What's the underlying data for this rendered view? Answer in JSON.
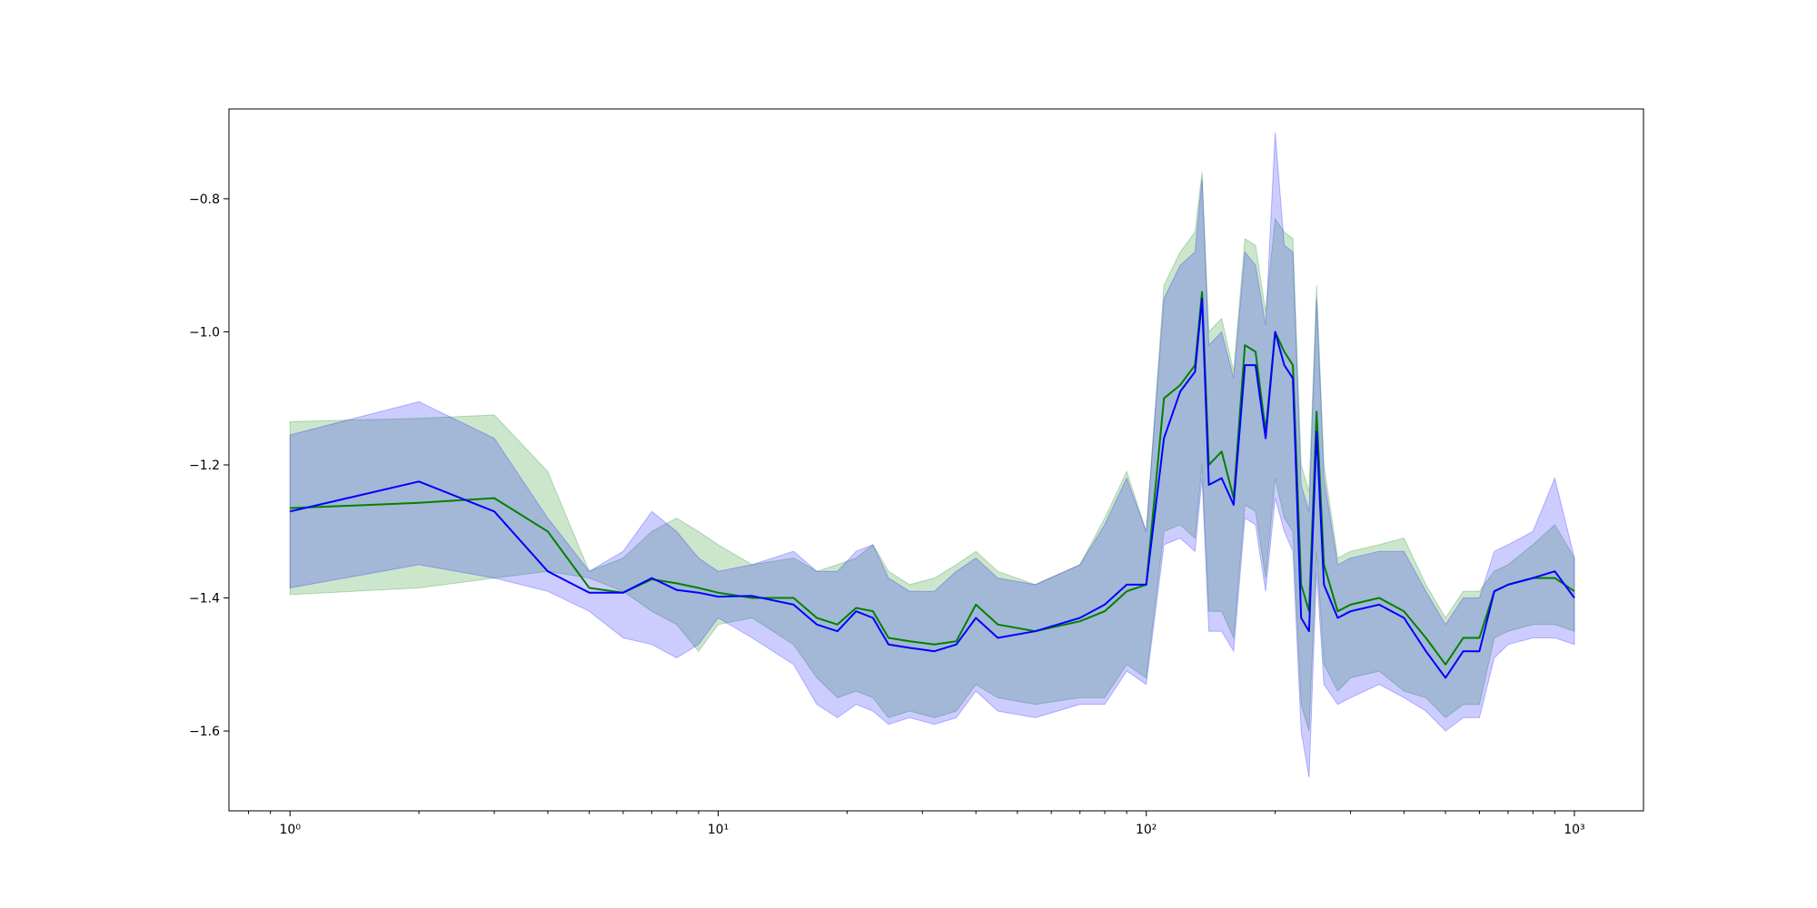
{
  "chart_data": {
    "type": "line",
    "title": "",
    "xlabel": "",
    "ylabel": "",
    "x_scale": "log",
    "xlim": [
      0.72,
      1450
    ],
    "ylim": [
      -1.72,
      -0.665
    ],
    "grid": false,
    "x_ticks": [
      {
        "value": 1,
        "label": "10⁰"
      },
      {
        "value": 10,
        "label": "10¹"
      },
      {
        "value": 100,
        "label": "10²"
      },
      {
        "value": 1000,
        "label": "10³"
      }
    ],
    "y_ticks": [
      {
        "value": -0.8,
        "label": "−0.8"
      },
      {
        "value": -1.0,
        "label": "−1.0"
      },
      {
        "value": -1.2,
        "label": "−1.2"
      },
      {
        "value": -1.4,
        "label": "−1.4"
      },
      {
        "value": -1.6,
        "label": "−1.6"
      }
    ],
    "series": [
      {
        "color": "#008000",
        "band_color": "#008000",
        "x": [
          1,
          2,
          3,
          4,
          5,
          6,
          7,
          8,
          9,
          10,
          12,
          15,
          17,
          19,
          21,
          23,
          25,
          28,
          32,
          36,
          40,
          45,
          55,
          70,
          80,
          90,
          100,
          110,
          120,
          130,
          135,
          140,
          150,
          160,
          170,
          180,
          190,
          200,
          210,
          220,
          230,
          240,
          250,
          260,
          280,
          300,
          350,
          400,
          450,
          500,
          550,
          600,
          650,
          700,
          800,
          900,
          1000
        ],
        "y": [
          -1.265,
          -1.257,
          -1.25,
          -1.3,
          -1.385,
          -1.392,
          -1.372,
          -1.378,
          -1.385,
          -1.392,
          -1.4,
          -1.4,
          -1.43,
          -1.44,
          -1.415,
          -1.42,
          -1.46,
          -1.465,
          -1.47,
          -1.465,
          -1.41,
          -1.44,
          -1.45,
          -1.435,
          -1.42,
          -1.39,
          -1.38,
          -1.1,
          -1.08,
          -1.05,
          -0.94,
          -1.2,
          -1.18,
          -1.25,
          -1.02,
          -1.03,
          -1.15,
          -1.0,
          -1.03,
          -1.05,
          -1.38,
          -1.42,
          -1.12,
          -1.35,
          -1.42,
          -1.41,
          -1.4,
          -1.42,
          -1.46,
          -1.5,
          -1.46,
          -1.46,
          -1.39,
          -1.38,
          -1.37,
          -1.37,
          -1.39
        ],
        "upper": [
          -1.135,
          -1.13,
          -1.125,
          -1.21,
          -1.36,
          -1.34,
          -1.3,
          -1.28,
          -1.3,
          -1.32,
          -1.35,
          -1.34,
          -1.36,
          -1.35,
          -1.34,
          -1.32,
          -1.36,
          -1.38,
          -1.37,
          -1.35,
          -1.33,
          -1.36,
          -1.38,
          -1.35,
          -1.28,
          -1.21,
          -1.3,
          -0.93,
          -0.88,
          -0.85,
          -0.76,
          -1.0,
          -0.98,
          -1.06,
          -0.86,
          -0.87,
          -0.97,
          -0.83,
          -0.85,
          -0.86,
          -1.2,
          -1.24,
          -0.93,
          -1.2,
          -1.34,
          -1.33,
          -1.32,
          -1.31,
          -1.38,
          -1.43,
          -1.39,
          -1.39,
          -1.36,
          -1.35,
          -1.32,
          -1.29,
          -1.34
        ],
        "lower": [
          -1.395,
          -1.385,
          -1.37,
          -1.36,
          -1.37,
          -1.39,
          -1.42,
          -1.44,
          -1.48,
          -1.44,
          -1.43,
          -1.47,
          -1.52,
          -1.55,
          -1.54,
          -1.55,
          -1.58,
          -1.57,
          -1.58,
          -1.57,
          -1.53,
          -1.55,
          -1.56,
          -1.55,
          -1.55,
          -1.5,
          -1.52,
          -1.3,
          -1.29,
          -1.31,
          -1.2,
          -1.42,
          -1.42,
          -1.46,
          -1.26,
          -1.27,
          -1.37,
          -1.22,
          -1.28,
          -1.3,
          -1.56,
          -1.6,
          -1.33,
          -1.5,
          -1.54,
          -1.52,
          -1.51,
          -1.54,
          -1.55,
          -1.58,
          -1.56,
          -1.56,
          -1.46,
          -1.45,
          -1.44,
          -1.44,
          -1.45
        ]
      },
      {
        "color": "#0000ff",
        "band_color": "#0000ff",
        "x": [
          1,
          2,
          3,
          4,
          5,
          6,
          7,
          8,
          9,
          10,
          12,
          15,
          17,
          19,
          21,
          23,
          25,
          28,
          32,
          36,
          40,
          45,
          55,
          70,
          80,
          90,
          100,
          110,
          120,
          130,
          135,
          140,
          150,
          160,
          170,
          180,
          190,
          200,
          210,
          220,
          230,
          240,
          250,
          260,
          280,
          300,
          350,
          400,
          450,
          500,
          550,
          600,
          650,
          700,
          800,
          900,
          1000
        ],
        "y": [
          -1.27,
          -1.225,
          -1.27,
          -1.36,
          -1.392,
          -1.392,
          -1.37,
          -1.388,
          -1.392,
          -1.398,
          -1.397,
          -1.41,
          -1.44,
          -1.45,
          -1.42,
          -1.43,
          -1.47,
          -1.475,
          -1.48,
          -1.47,
          -1.43,
          -1.46,
          -1.45,
          -1.43,
          -1.41,
          -1.38,
          -1.38,
          -1.16,
          -1.09,
          -1.06,
          -0.95,
          -1.23,
          -1.22,
          -1.26,
          -1.05,
          -1.05,
          -1.16,
          -1.0,
          -1.05,
          -1.07,
          -1.43,
          -1.45,
          -1.15,
          -1.38,
          -1.43,
          -1.42,
          -1.41,
          -1.43,
          -1.48,
          -1.52,
          -1.48,
          -1.48,
          -1.39,
          -1.38,
          -1.37,
          -1.36,
          -1.4
        ],
        "upper": [
          -1.155,
          -1.105,
          -1.16,
          -1.28,
          -1.36,
          -1.33,
          -1.27,
          -1.3,
          -1.34,
          -1.36,
          -1.35,
          -1.33,
          -1.36,
          -1.36,
          -1.33,
          -1.32,
          -1.37,
          -1.39,
          -1.39,
          -1.36,
          -1.34,
          -1.37,
          -1.38,
          -1.35,
          -1.29,
          -1.22,
          -1.3,
          -0.95,
          -0.9,
          -0.88,
          -0.77,
          -1.02,
          -1.0,
          -1.07,
          -0.88,
          -0.9,
          -0.99,
          -0.7,
          -0.87,
          -0.88,
          -1.23,
          -1.27,
          -0.95,
          -1.22,
          -1.35,
          -1.34,
          -1.33,
          -1.33,
          -1.39,
          -1.44,
          -1.4,
          -1.4,
          -1.33,
          -1.32,
          -1.3,
          -1.22,
          -1.34
        ],
        "lower": [
          -1.385,
          -1.35,
          -1.37,
          -1.39,
          -1.42,
          -1.46,
          -1.47,
          -1.49,
          -1.47,
          -1.43,
          -1.46,
          -1.5,
          -1.56,
          -1.58,
          -1.56,
          -1.57,
          -1.59,
          -1.58,
          -1.59,
          -1.58,
          -1.54,
          -1.57,
          -1.58,
          -1.56,
          -1.56,
          -1.51,
          -1.53,
          -1.32,
          -1.31,
          -1.33,
          -1.22,
          -1.45,
          -1.45,
          -1.48,
          -1.28,
          -1.29,
          -1.39,
          -1.25,
          -1.3,
          -1.33,
          -1.6,
          -1.67,
          -1.36,
          -1.53,
          -1.56,
          -1.55,
          -1.53,
          -1.55,
          -1.57,
          -1.6,
          -1.58,
          -1.58,
          -1.49,
          -1.47,
          -1.46,
          -1.46,
          -1.47
        ]
      }
    ]
  }
}
